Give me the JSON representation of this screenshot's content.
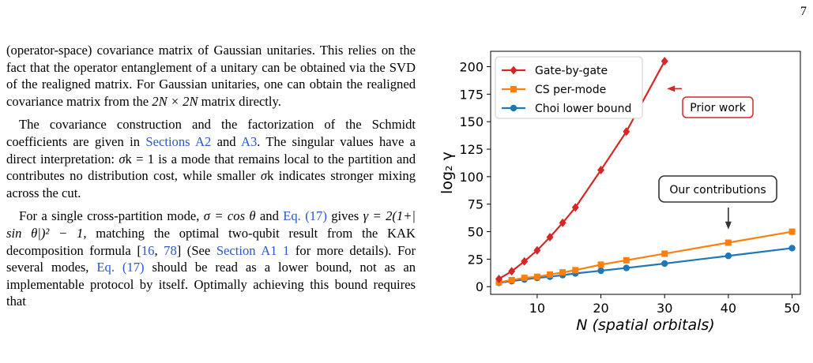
{
  "page_number": "7",
  "paragraphs": [
    {
      "indent": false,
      "segments": [
        {
          "t": "(operator-space) covariance matrix of Gaussian unitaries. This relies on the fact that the operator entanglement of a unitary can be obtained via the SVD of the realigned matrix. For Gaussian unitaries, one can obtain the realigned covariance matrix from the "
        },
        {
          "t": "2N × 2N",
          "cls": "math"
        },
        {
          "t": " matrix directly."
        }
      ]
    },
    {
      "indent": true,
      "segments": [
        {
          "t": "The covariance construction and the factorization of the Schmidt coefficients are given in "
        },
        {
          "t": "Sections A2",
          "cls": "ref"
        },
        {
          "t": " and "
        },
        {
          "t": "A3",
          "cls": "ref"
        },
        {
          "t": ". The singular values have a direct interpretation: "
        },
        {
          "t": "σ",
          "cls": "math"
        },
        {
          "t": "k = 1 is a mode that remains local to the partition and contributes no distribution cost, while smaller "
        },
        {
          "t": "σ",
          "cls": "math"
        },
        {
          "t": "k indicates stronger mixing across the cut."
        }
      ]
    },
    {
      "indent": true,
      "segments": [
        {
          "t": "For a single cross-partition mode, "
        },
        {
          "t": "σ = cos θ",
          "cls": "math"
        },
        {
          "t": " and "
        },
        {
          "t": "Eq. (17)",
          "cls": "ref"
        },
        {
          "t": " gives "
        },
        {
          "t": "γ = 2(1+| sin θ|)² − 1",
          "cls": "math"
        },
        {
          "t": ", matching the optimal two-qubit result from the KAK decomposition formula ["
        },
        {
          "t": "16",
          "cls": "ref"
        },
        {
          "t": ", "
        },
        {
          "t": "78",
          "cls": "ref"
        },
        {
          "t": "] (See "
        },
        {
          "t": "Section A1 1",
          "cls": "ref"
        },
        {
          "t": " for more details). For several modes, "
        },
        {
          "t": "Eq. (17)",
          "cls": "ref"
        },
        {
          "t": " should be read as a lower bound, not as an implementable protocol by itself. Optimally achieving this bound requires that"
        }
      ]
    }
  ],
  "chart_data": {
    "type": "line",
    "title": "",
    "xlabel": "N (spatial orbitals)",
    "ylabel": "log₂ γ",
    "xlim": [
      2.7,
      51.3
    ],
    "ylim": [
      -7,
      214
    ],
    "xticks": [
      10,
      20,
      30,
      40,
      50
    ],
    "yticks": [
      0,
      25,
      50,
      75,
      100,
      125,
      150,
      175,
      200
    ],
    "grid": false,
    "legend_position": "top-left",
    "series": [
      {
        "name": "Gate-by-gate",
        "color": "#d62728",
        "marker": "diamond",
        "x": [
          4,
          6,
          8,
          10,
          12,
          14,
          16,
          20,
          24,
          30
        ],
        "y": [
          7,
          14,
          23,
          33,
          45,
          58,
          72,
          106,
          141,
          205
        ]
      },
      {
        "name": "CS per-mode",
        "color": "#ff7f0e",
        "marker": "square",
        "x": [
          4,
          6,
          8,
          10,
          12,
          14,
          16,
          20,
          24,
          30,
          40,
          50
        ],
        "y": [
          4,
          6,
          8,
          9,
          11,
          13,
          15,
          20,
          24,
          30,
          40,
          50
        ]
      },
      {
        "name": "Choi lower bound",
        "color": "#1f77b4",
        "marker": "circle",
        "x": [
          4,
          6,
          8,
          10,
          12,
          14,
          16,
          20,
          24,
          30,
          40,
          50
        ],
        "y": [
          3.5,
          5,
          6.5,
          8,
          9,
          10.5,
          12,
          14.5,
          17,
          21,
          28,
          35
        ]
      }
    ],
    "annotations": [
      {
        "text": "Prior work",
        "target": [
          30,
          180
        ],
        "box_color": "#d62728"
      },
      {
        "text": "Our contributions",
        "target": [
          40,
          52
        ],
        "box_color": "#333333"
      }
    ]
  }
}
